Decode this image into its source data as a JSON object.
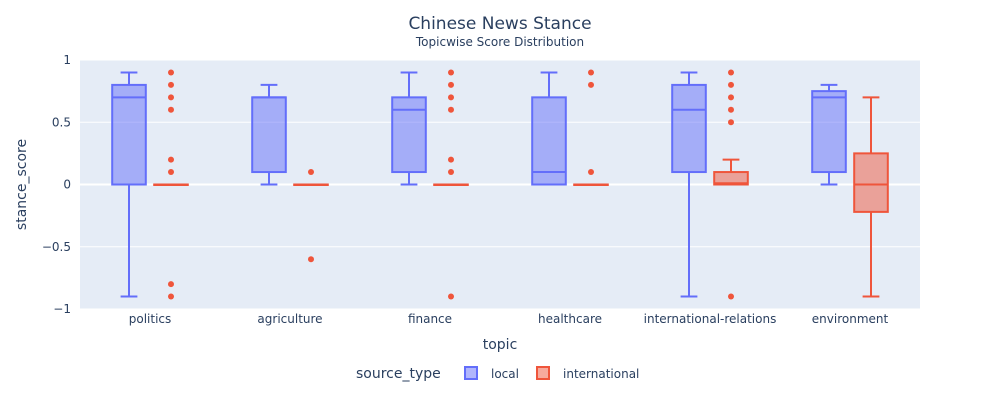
{
  "chart_data": {
    "type": "box",
    "title": "Chinese News Stance",
    "subtitle": "Topicwise Score Distribution",
    "xlabel": "topic",
    "ylabel": "stance_score",
    "ylim": [
      -1,
      1
    ],
    "yticks": [
      1,
      0.5,
      0,
      -0.5,
      -1
    ],
    "ytick_labels": [
      "1",
      "0.5",
      "0",
      "−0.5",
      "−1"
    ],
    "grid": true,
    "legend": {
      "title": "source_type",
      "placement": "bottom-center"
    },
    "categories": [
      "politics",
      "agriculture",
      "finance",
      "healthcare",
      "international-relations",
      "environment"
    ],
    "series": [
      {
        "name": "local",
        "color": "#636efa",
        "boxes": [
          {
            "min": -0.9,
            "q1": 0.0,
            "median": 0.7,
            "q3": 0.8,
            "max": 0.9,
            "outliers": []
          },
          {
            "min": 0.0,
            "q1": 0.1,
            "median": 0.7,
            "q3": 0.7,
            "max": 0.8,
            "outliers": []
          },
          {
            "min": 0.0,
            "q1": 0.1,
            "median": 0.6,
            "q3": 0.7,
            "max": 0.9,
            "outliers": []
          },
          {
            "min": 0.0,
            "q1": 0.0,
            "median": 0.1,
            "q3": 0.7,
            "max": 0.9,
            "outliers": []
          },
          {
            "min": -0.9,
            "q1": 0.1,
            "median": 0.6,
            "q3": 0.8,
            "max": 0.9,
            "outliers": []
          },
          {
            "min": 0.0,
            "q1": 0.1,
            "median": 0.7,
            "q3": 0.75,
            "max": 0.8,
            "outliers": []
          }
        ]
      },
      {
        "name": "international",
        "color": "#ef553b",
        "boxes": [
          {
            "min": 0.0,
            "q1": 0.0,
            "median": 0.0,
            "q3": 0.0,
            "max": 0.0,
            "outliers": [
              0.9,
              0.8,
              0.7,
              0.6,
              0.2,
              0.1,
              -0.8,
              -0.9
            ]
          },
          {
            "min": 0.0,
            "q1": 0.0,
            "median": 0.0,
            "q3": 0.0,
            "max": 0.0,
            "outliers": [
              0.1,
              -0.6
            ]
          },
          {
            "min": 0.0,
            "q1": 0.0,
            "median": 0.0,
            "q3": 0.0,
            "max": 0.0,
            "outliers": [
              0.9,
              0.8,
              0.7,
              0.6,
              0.2,
              0.1,
              -0.9
            ]
          },
          {
            "min": 0.0,
            "q1": 0.0,
            "median": 0.0,
            "q3": 0.0,
            "max": 0.0,
            "outliers": [
              0.9,
              0.8,
              0.1
            ]
          },
          {
            "min": 0.0,
            "q1": 0.0,
            "median": 0.01,
            "q3": 0.1,
            "max": 0.2,
            "outliers": [
              0.9,
              0.8,
              0.7,
              0.6,
              0.5,
              -0.9
            ]
          },
          {
            "min": -0.9,
            "q1": -0.22,
            "median": 0.0,
            "q3": 0.25,
            "max": 0.7,
            "outliers": []
          }
        ]
      }
    ]
  }
}
